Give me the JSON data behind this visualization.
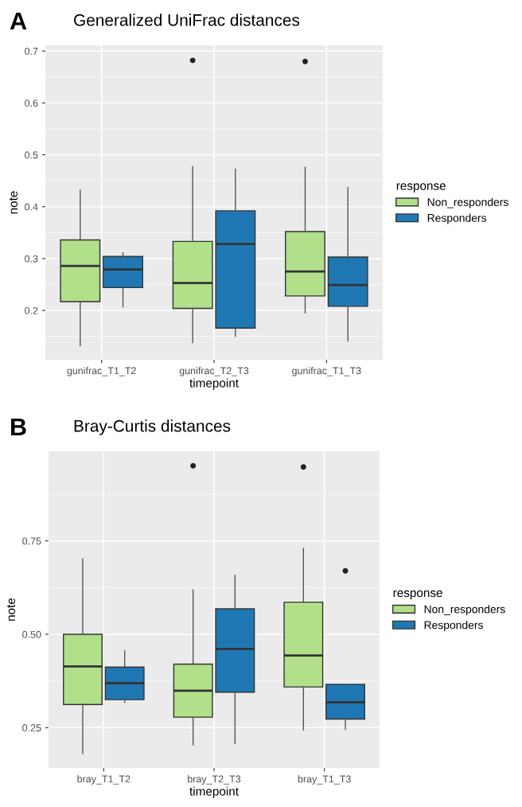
{
  "chart_data": [
    {
      "type": "box",
      "title": "Generalized UniFrac distances",
      "subtitle": "A",
      "xlabel": "timepoint",
      "ylabel": "note",
      "legend_title": "response",
      "legend": "right",
      "grid": true,
      "categories": [
        "gunifrac_T1_T2",
        "gunifrac_T2_T3",
        "gunifrac_T1_T3"
      ],
      "ylim": [
        0.105,
        0.711
      ],
      "yticks": [
        0.2,
        0.3,
        0.4,
        0.5,
        0.6,
        0.7
      ],
      "series": [
        {
          "name": "Non_responders",
          "color": "#b2df8a",
          "boxes": [
            {
              "low": 0.132,
              "q1": 0.217,
              "median": 0.286,
              "q3": 0.336,
              "high": 0.432
            },
            {
              "low": 0.138,
              "q1": 0.204,
              "median": 0.253,
              "q3": 0.333,
              "high": 0.477,
              "outliers": [
                0.682
              ]
            },
            {
              "low": 0.195,
              "q1": 0.228,
              "median": 0.275,
              "q3": 0.352,
              "high": 0.476,
              "outliers": [
                0.68
              ]
            }
          ]
        },
        {
          "name": "Responders",
          "color": "#1f78b4",
          "boxes": [
            {
              "low": 0.207,
              "q1": 0.244,
              "median": 0.279,
              "q3": 0.304,
              "high": 0.311
            },
            {
              "low": 0.15,
              "q1": 0.166,
              "median": 0.328,
              "q3": 0.392,
              "high": 0.472
            },
            {
              "low": 0.141,
              "q1": 0.208,
              "median": 0.249,
              "q3": 0.303,
              "high": 0.437
            }
          ]
        }
      ]
    },
    {
      "type": "box",
      "title": "Bray-Curtis distances",
      "subtitle": "B",
      "xlabel": "timepoint",
      "ylabel": "note",
      "legend_title": "response",
      "legend": "right",
      "grid": true,
      "categories": [
        "bray_T1_T2",
        "bray_T2_T3",
        "bray_T1_T3"
      ],
      "ylim": [
        0.142,
        0.99
      ],
      "yticks": [
        {
          "value": 0.25,
          "label": "0.25"
        },
        {
          "value": 0.5,
          "label": "0.50"
        },
        {
          "value": 0.75,
          "label": "0.75"
        }
      ],
      "series": [
        {
          "name": "Non_responders",
          "color": "#b2df8a",
          "boxes": [
            {
              "low": 0.181,
              "q1": 0.312,
              "median": 0.414,
              "q3": 0.5,
              "high": 0.702
            },
            {
              "low": 0.204,
              "q1": 0.278,
              "median": 0.349,
              "q3": 0.42,
              "high": 0.619,
              "outliers": [
                0.951
              ]
            },
            {
              "low": 0.244,
              "q1": 0.359,
              "median": 0.443,
              "q3": 0.586,
              "high": 0.73,
              "outliers": [
                0.948
              ]
            }
          ]
        },
        {
          "name": "Responders",
          "color": "#1f78b4",
          "boxes": [
            {
              "low": 0.318,
              "q1": 0.325,
              "median": 0.369,
              "q3": 0.412,
              "high": 0.456
            },
            {
              "low": 0.207,
              "q1": 0.345,
              "median": 0.461,
              "q3": 0.568,
              "high": 0.658
            },
            {
              "low": 0.246,
              "q1": 0.273,
              "median": 0.318,
              "q3": 0.366,
              "high": 0.366,
              "outliers": [
                0.67
              ]
            }
          ]
        }
      ]
    }
  ]
}
